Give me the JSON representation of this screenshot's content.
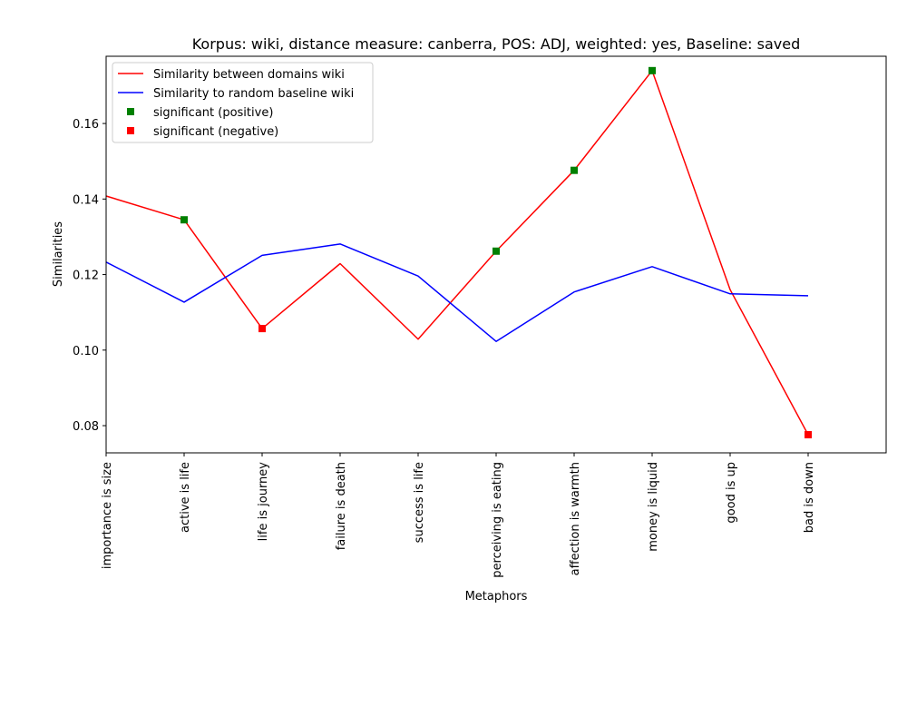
{
  "chart_data": {
    "type": "line",
    "title": "Korpus: wiki, distance measure: canberra, POS: ADJ, weighted: yes, Baseline: saved",
    "xlabel": "Metaphors",
    "ylabel": "Similarities",
    "categories": [
      "importance is size",
      "active is life",
      "life is journey",
      "failure is death",
      "success is life",
      "perceiving is eating",
      "affection is warmth",
      "money is liquid",
      "good is up",
      "bad is down"
    ],
    "ylim": [
      0.0728,
      0.1778
    ],
    "yticks": [
      0.08,
      0.1,
      0.12,
      0.14,
      0.16
    ],
    "ytick_labels": [
      "0.08",
      "0.10",
      "0.12",
      "0.14",
      "0.16"
    ],
    "grid": false,
    "legend_position": "top-left",
    "series": [
      {
        "name": "Similarity between domains wiki",
        "color": "#ff0000",
        "values": [
          0.1408,
          0.1345,
          0.1057,
          0.1229,
          0.1029,
          0.1262,
          0.1476,
          0.174,
          0.116,
          0.0776
        ]
      },
      {
        "name": "Similarity to random baseline wiki",
        "color": "#0000ff",
        "values": [
          0.1233,
          0.1127,
          0.1251,
          0.1281,
          0.1196,
          0.1023,
          0.1154,
          0.1221,
          0.1149,
          0.1144
        ]
      }
    ],
    "markers": [
      {
        "name": "significant (positive)",
        "color": "#008000",
        "points": [
          {
            "x": "active is life",
            "y": 0.1345
          },
          {
            "x": "perceiving is eating",
            "y": 0.1262
          },
          {
            "x": "affection is warmth",
            "y": 0.1476
          },
          {
            "x": "money is liquid",
            "y": 0.174
          }
        ]
      },
      {
        "name": "significant (negative)",
        "color": "#ff0000",
        "points": [
          {
            "x": "life is journey",
            "y": 0.1057
          },
          {
            "x": "bad is down",
            "y": 0.0776
          }
        ]
      }
    ]
  }
}
